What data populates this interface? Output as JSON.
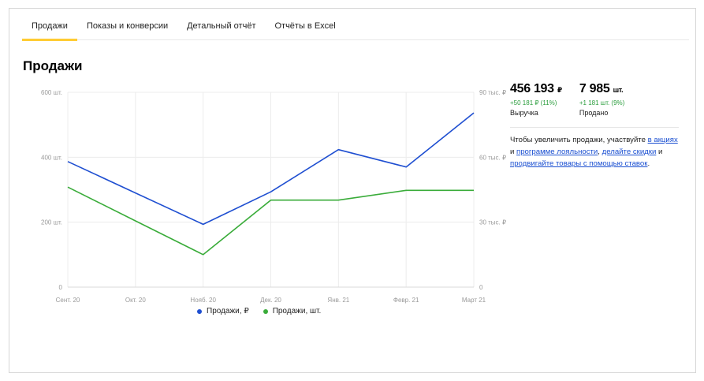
{
  "tabs": [
    {
      "label": "Продажи",
      "active": true
    },
    {
      "label": "Показы и конверсии",
      "active": false
    },
    {
      "label": "Детальный отчёт",
      "active": false
    },
    {
      "label": "Отчёты в Excel",
      "active": false
    }
  ],
  "section_title": "Продажи",
  "stats": {
    "revenue": {
      "value": "456 193",
      "unit": "₽",
      "delta": "+50 181 ₽ (11%)",
      "label": "Выручка"
    },
    "sold": {
      "value": "7 985",
      "unit": "шт.",
      "delta": "+1 181 шт. (9%)",
      "label": "Продано"
    }
  },
  "info": {
    "t1": "Чтобы увеличить продажи, участвуйте ",
    "l1": "в акциях",
    "t2": " и ",
    "l2": "программе лояльности",
    "t3": ", ",
    "l3": "делайте скидки",
    "t4": " и ",
    "l4": "продвигайте товары с помощью ставок",
    "t5": "."
  },
  "colors": {
    "blue": "#1f4fd1",
    "green": "#3aac3a",
    "accent": "#ffcc33"
  },
  "chart_data": {
    "type": "line",
    "categories": [
      "Сент. 20",
      "Окт. 20",
      "Нояб. 20",
      "Дек. 20",
      "Янв. 21",
      "Февр. 21",
      "Март 21"
    ],
    "series": [
      {
        "name": "Продажи, ₽",
        "axis": "right",
        "color": "#1f4fd1",
        "values": [
          58000,
          43500,
          29000,
          44000,
          63500,
          55500,
          80500
        ]
      },
      {
        "name": "Продажи, шт.",
        "axis": "left",
        "color": "#3aac3a",
        "values": [
          308,
          204,
          100,
          268,
          268,
          298,
          298
        ]
      }
    ],
    "left_axis": {
      "ticks": [
        0,
        200,
        400,
        600
      ],
      "tick_labels": [
        "0",
        "200 шт.",
        "400 шт.",
        "600 шт."
      ],
      "ylim": [
        0,
        600
      ]
    },
    "right_axis": {
      "ticks": [
        0,
        30000,
        60000,
        90000
      ],
      "tick_labels": [
        "0",
        "30 тыс. ₽",
        "60 тыс. ₽",
        "90 тыс. ₽"
      ],
      "ylim": [
        0,
        90000
      ]
    },
    "grid": true,
    "legend": "bottom"
  }
}
